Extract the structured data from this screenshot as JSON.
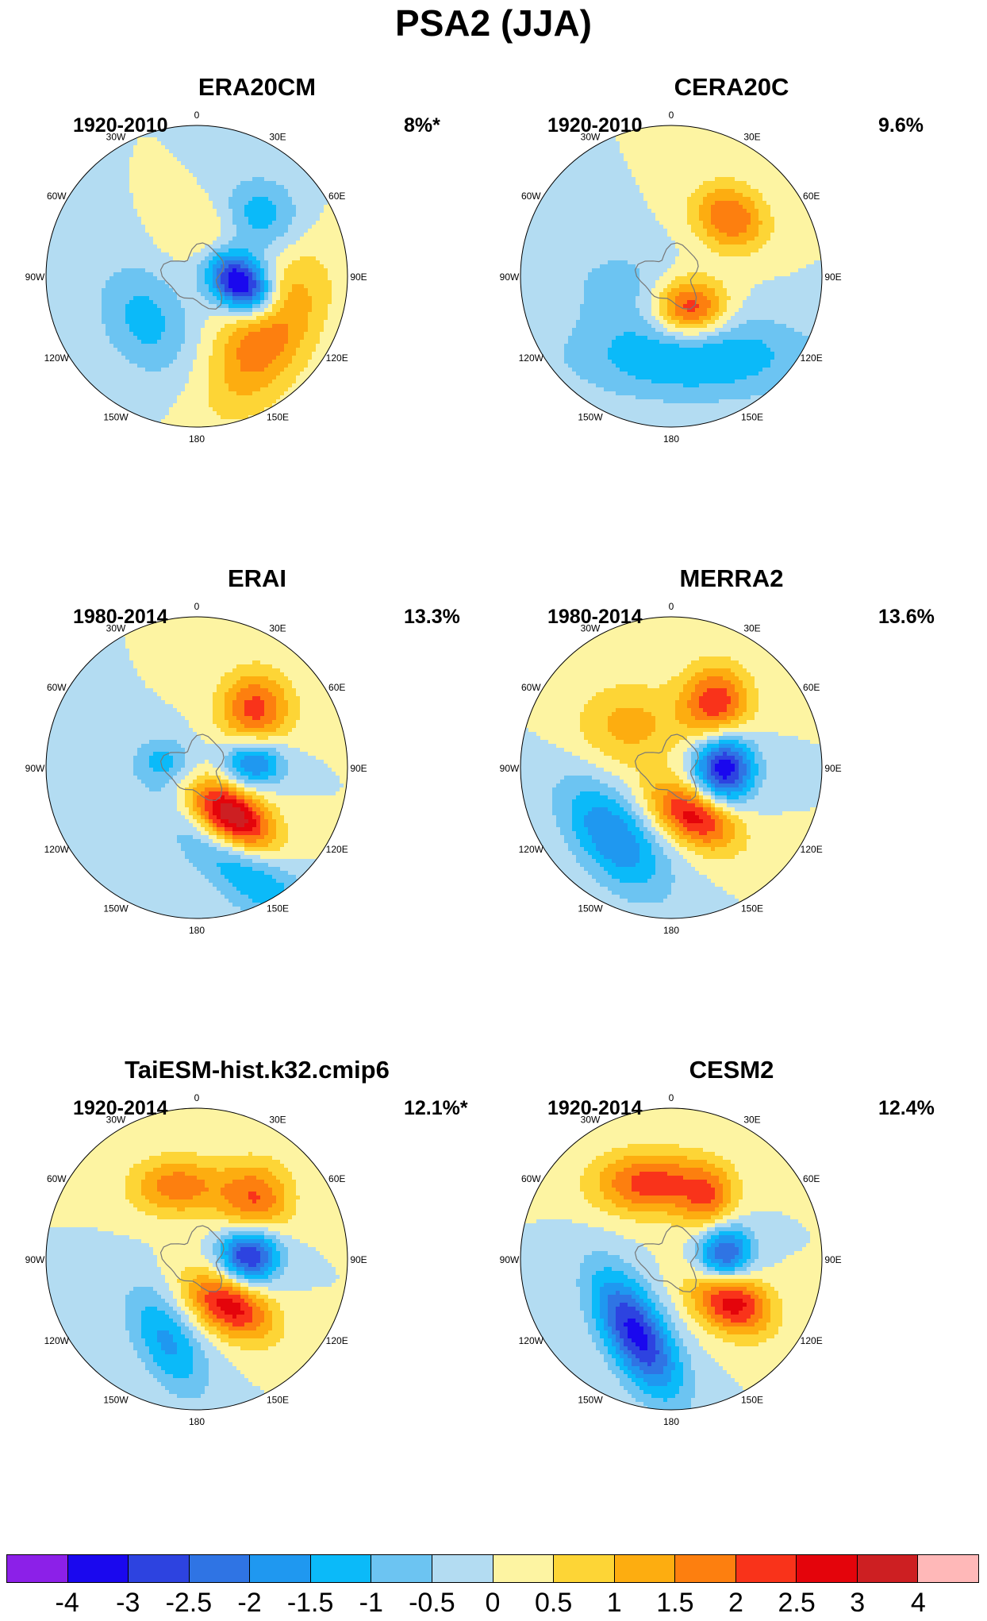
{
  "title": "PSA2 (JJA)",
  "panels": [
    {
      "name": "ERA20CM",
      "period": "1920-2010",
      "variance": "8%*",
      "pattern": {
        "lobes": [
          {
            "dir": 100,
            "r": 0.3,
            "v": -4.0,
            "sx": 0.17,
            "sy": 0.12,
            "rot": 40
          },
          {
            "dir": 130,
            "r": 0.6,
            "v": 2.0,
            "sx": 0.38,
            "sy": 0.2,
            "rot": 120
          },
          {
            "dir": 45,
            "r": 0.55,
            "v": -1.5,
            "sx": 0.2,
            "sy": 0.18,
            "rot": 0
          },
          {
            "dir": 230,
            "r": 0.45,
            "v": -1.2,
            "sx": 0.28,
            "sy": 0.2,
            "rot": 60
          },
          {
            "dir": 20,
            "r": 0.32,
            "v": 0.9,
            "sx": 0.2,
            "sy": 0.16,
            "rot": 0
          }
        ]
      }
    },
    {
      "name": "CERA20C",
      "period": "1920-2010",
      "variance": "9.6%",
      "pattern": {
        "lobes": [
          {
            "dir": 150,
            "r": 0.25,
            "v": 2.6,
            "sx": 0.17,
            "sy": 0.14,
            "rot": 0
          },
          {
            "dir": 45,
            "r": 0.55,
            "v": 2.0,
            "sx": 0.18,
            "sy": 0.15,
            "rot": 30
          },
          {
            "dir": 165,
            "r": 0.55,
            "v": -1.6,
            "sx": 0.55,
            "sy": 0.2,
            "rot": 0
          },
          {
            "dir": 260,
            "r": 0.35,
            "v": -0.7,
            "sx": 0.25,
            "sy": 0.2,
            "rot": 0
          }
        ]
      }
    },
    {
      "name": "ERAI",
      "period": "1980-2014",
      "variance": "13.3%",
      "pattern": {
        "lobes": [
          {
            "dir": 145,
            "r": 0.4,
            "v": 3.8,
            "sx": 0.22,
            "sy": 0.13,
            "rot": 35
          },
          {
            "dir": 85,
            "r": 0.38,
            "v": -2.3,
            "sx": 0.14,
            "sy": 0.11,
            "rot": 0
          },
          {
            "dir": 45,
            "r": 0.55,
            "v": 2.2,
            "sx": 0.17,
            "sy": 0.18,
            "rot": 0
          },
          {
            "dir": 155,
            "r": 0.75,
            "v": -1.5,
            "sx": 0.45,
            "sy": 0.15,
            "rot": 40
          },
          {
            "dir": 280,
            "r": 0.22,
            "v": -1.2,
            "sx": 0.14,
            "sy": 0.12,
            "rot": 0
          }
        ]
      }
    },
    {
      "name": "MERRA2",
      "period": "1980-2014",
      "variance": "13.6%",
      "pattern": {
        "lobes": [
          {
            "dir": 90,
            "r": 0.35,
            "v": -3.5,
            "sx": 0.14,
            "sy": 0.16,
            "rot": 0
          },
          {
            "dir": 155,
            "r": 0.35,
            "v": 2.8,
            "sx": 0.22,
            "sy": 0.13,
            "rot": 30
          },
          {
            "dir": 35,
            "r": 0.52,
            "v": 2.4,
            "sx": 0.16,
            "sy": 0.18,
            "rot": 0
          },
          {
            "dir": 220,
            "r": 0.6,
            "v": -2.0,
            "sx": 0.32,
            "sy": 0.17,
            "rot": 50
          },
          {
            "dir": 315,
            "r": 0.4,
            "v": 1.2,
            "sx": 0.25,
            "sy": 0.2,
            "rot": 0
          }
        ]
      }
    },
    {
      "name": "TaiESM-hist.k32.cmip6",
      "period": "1920-2014",
      "variance": "12.1%*",
      "pattern": {
        "lobes": [
          {
            "dir": 85,
            "r": 0.35,
            "v": -3.3,
            "sx": 0.14,
            "sy": 0.13,
            "rot": 0
          },
          {
            "dir": 145,
            "r": 0.38,
            "v": 2.8,
            "sx": 0.22,
            "sy": 0.13,
            "rot": 30
          },
          {
            "dir": 45,
            "r": 0.55,
            "v": 2.0,
            "sx": 0.17,
            "sy": 0.18,
            "rot": 0
          },
          {
            "dir": 345,
            "r": 0.5,
            "v": 1.8,
            "sx": 0.22,
            "sy": 0.14,
            "rot": 0
          },
          {
            "dir": 200,
            "r": 0.58,
            "v": -1.6,
            "sx": 0.28,
            "sy": 0.14,
            "rot": 60
          }
        ]
      }
    },
    {
      "name": "CESM2",
      "period": "1920-2014",
      "variance": "12.4%",
      "pattern": {
        "lobes": [
          {
            "dir": 85,
            "r": 0.35,
            "v": -3.0,
            "sx": 0.13,
            "sy": 0.15,
            "rot": 0
          },
          {
            "dir": 125,
            "r": 0.48,
            "v": 3.0,
            "sx": 0.2,
            "sy": 0.14,
            "rot": 30
          },
          {
            "dir": 345,
            "r": 0.52,
            "v": 2.3,
            "sx": 0.27,
            "sy": 0.15,
            "rot": 0
          },
          {
            "dir": 35,
            "r": 0.45,
            "v": 1.6,
            "sx": 0.13,
            "sy": 0.17,
            "rot": 0
          },
          {
            "dir": 205,
            "r": 0.55,
            "v": -3.2,
            "sx": 0.32,
            "sy": 0.14,
            "rot": 60
          }
        ]
      }
    }
  ],
  "longitude_labels": [
    "0",
    "30E",
    "60E",
    "90E",
    "120E",
    "150E",
    "180",
    "150W",
    "120W",
    "90W",
    "60W",
    "30W"
  ],
  "colorbar": {
    "colors": [
      "#8c20e8",
      "#1a08ee",
      "#2d43e0",
      "#2f74e4",
      "#1f98f0",
      "#0bbaf9",
      "#6cc4f2",
      "#b3dcf2",
      "#fdf4a2",
      "#fdd536",
      "#fdad10",
      "#fd7f0f",
      "#f9331a",
      "#e4040b",
      "#cd1f22",
      "#ffb8b8"
    ],
    "labels": [
      "-4",
      "-3",
      "-2.5",
      "-2",
      "-1.5",
      "-1",
      "-0.5",
      "0",
      "0.5",
      "1",
      "1.5",
      "2",
      "2.5",
      "3",
      "4"
    ]
  }
}
